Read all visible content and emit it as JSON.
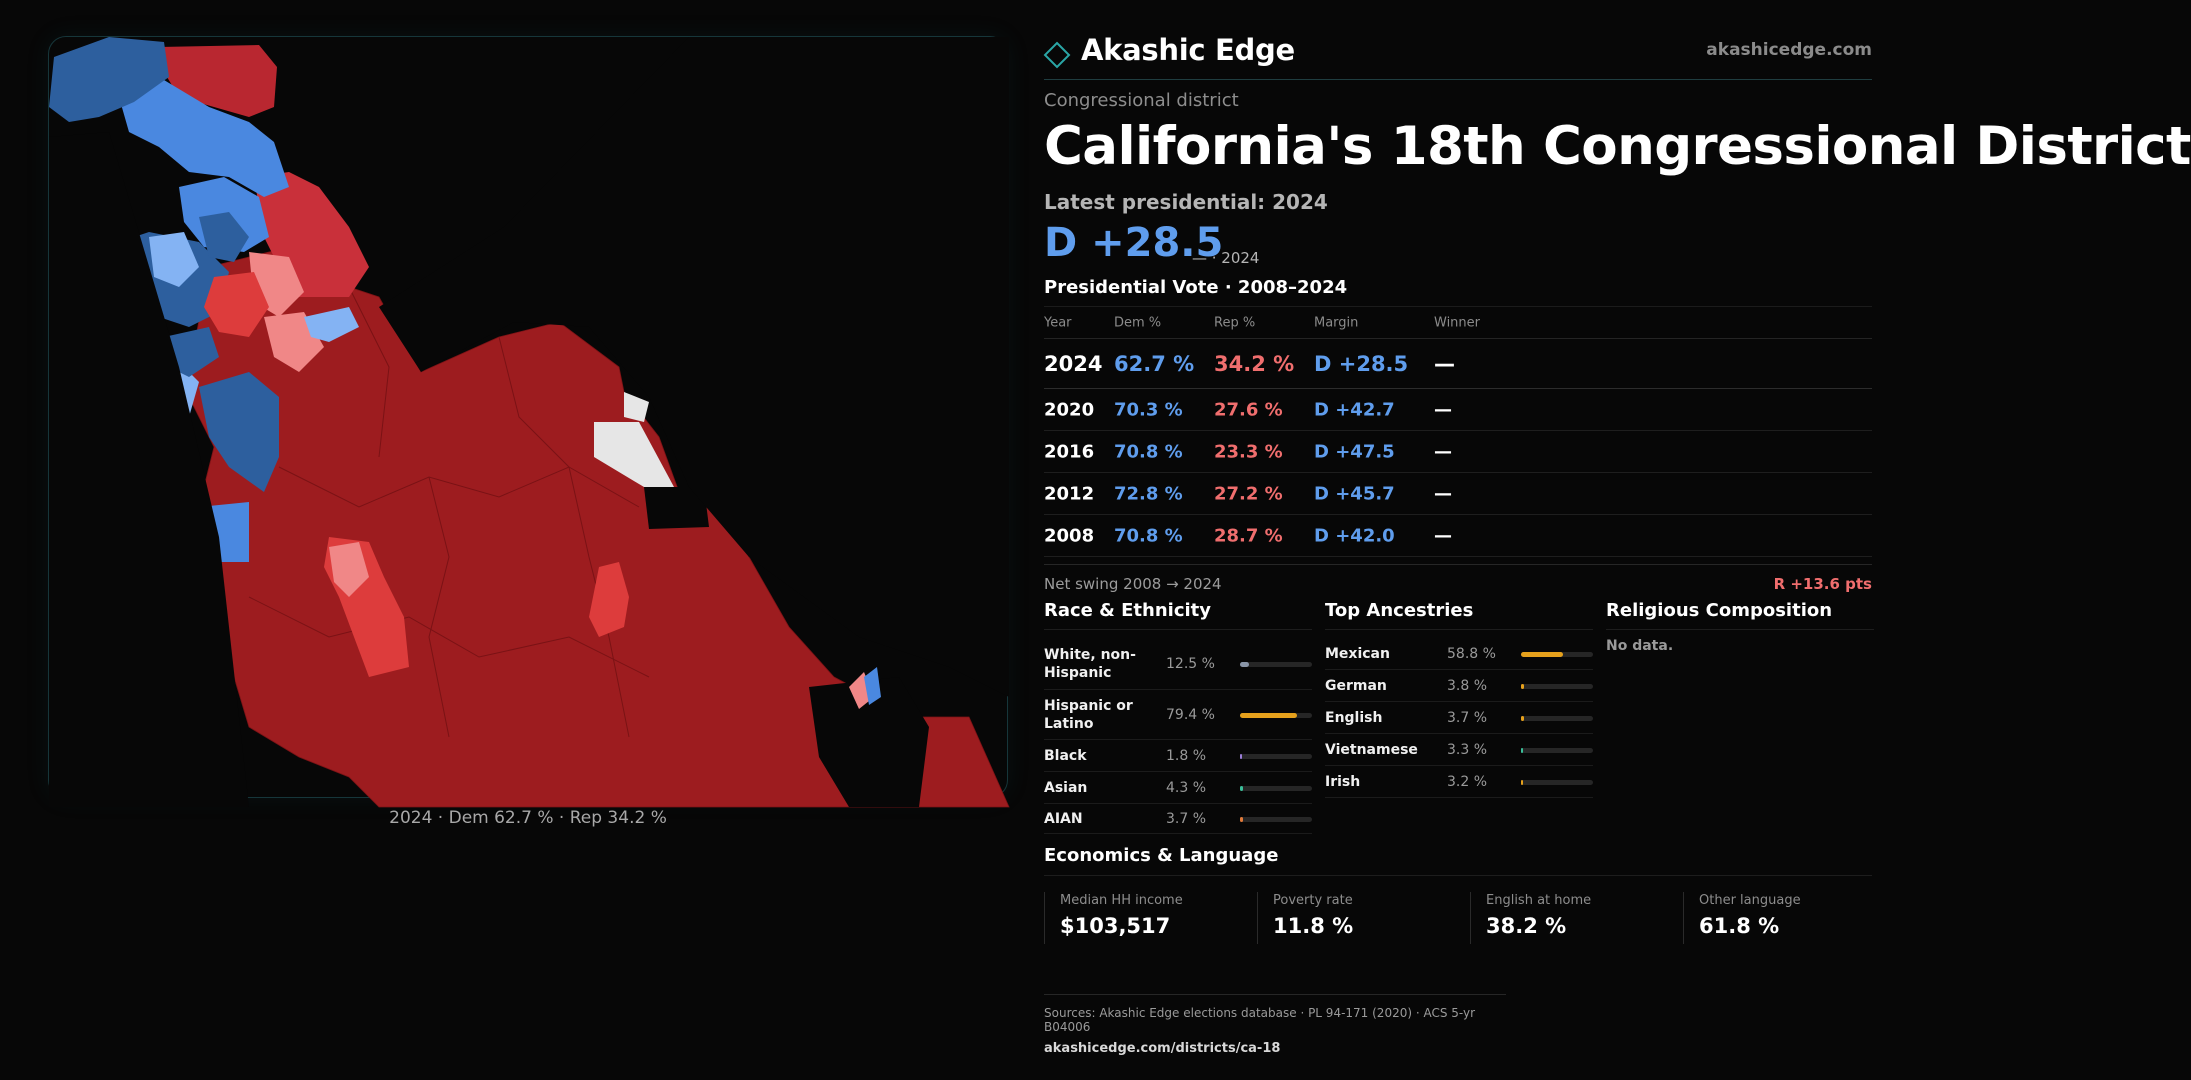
{
  "header": {
    "brand": "Akashic Edge",
    "site": "akashicedge.com"
  },
  "district": {
    "kicker": "Congressional district",
    "title": "California's 18th Congressional District",
    "latest_label": "Latest presidential: 2024",
    "margin": "D +28.5",
    "margin_note": "— · 2024"
  },
  "map": {
    "caption": "2024 · Dem 62.7 % · Rep 34.2 %",
    "colors": {
      "strong_dem": "#2d5f9e",
      "dem": "#4a88e0",
      "lean_dem": "#84b3f3",
      "lean_rep": "#f08787",
      "rep": "#dd3c3c",
      "strong_rep": "#9d1c1f",
      "no_data": "#e6e6e6"
    }
  },
  "presidential": {
    "title": "Presidential Vote · 2008–2024",
    "headers": {
      "year": "Year",
      "dem": "Dem %",
      "rep": "Rep %",
      "margin": "Margin",
      "winner": "Winner"
    },
    "rows": [
      {
        "year": "2024",
        "dem": "62.7 %",
        "rep": "34.2 %",
        "margin": "D +28.5",
        "winner": "—"
      },
      {
        "year": "2020",
        "dem": "70.3 %",
        "rep": "27.6 %",
        "margin": "D +42.7",
        "winner": "—"
      },
      {
        "year": "2016",
        "dem": "70.8 %",
        "rep": "23.3 %",
        "margin": "D +47.5",
        "winner": "—"
      },
      {
        "year": "2012",
        "dem": "72.8 %",
        "rep": "27.2 %",
        "margin": "D +45.7",
        "winner": "—"
      },
      {
        "year": "2008",
        "dem": "70.8 %",
        "rep": "28.7 %",
        "margin": "D +42.0",
        "winner": "—"
      }
    ]
  },
  "swing": {
    "label": "Net swing 2008 → 2024",
    "value": "R +13.6 pts"
  },
  "race": {
    "title": "Race & Ethnicity",
    "items": [
      {
        "name": "White, non-Hispanic",
        "pct": "12.5 %",
        "share": 0.125,
        "color": "#8a96a8"
      },
      {
        "name": "Hispanic or Latino",
        "pct": "79.4 %",
        "share": 0.794,
        "color": "#e6a11c"
      },
      {
        "name": "Black",
        "pct": "1.8 %",
        "share": 0.018,
        "color": "#9b7ed8"
      },
      {
        "name": "Asian",
        "pct": "4.3 %",
        "share": 0.043,
        "color": "#3bbf9a"
      },
      {
        "name": "AIAN",
        "pct": "3.7 %",
        "share": 0.037,
        "color": "#e07a3a"
      }
    ]
  },
  "ancestry": {
    "title": "Top Ancestries",
    "items": [
      {
        "name": "Mexican",
        "pct": "58.8 %",
        "share": 0.588,
        "color": "#e6a11c"
      },
      {
        "name": "German",
        "pct": "3.8 %",
        "share": 0.038,
        "color": "#e6a11c"
      },
      {
        "name": "English",
        "pct": "3.7 %",
        "share": 0.037,
        "color": "#e6a11c"
      },
      {
        "name": "Vietnamese",
        "pct": "3.3 %",
        "share": 0.033,
        "color": "#3bbf9a"
      },
      {
        "name": "Irish",
        "pct": "3.2 %",
        "share": 0.032,
        "color": "#e6a11c"
      }
    ]
  },
  "religion": {
    "title": "Religious Composition",
    "note": "No data."
  },
  "economics": {
    "title": "Economics & Language",
    "cells": [
      {
        "label": "Median HH income",
        "value": "$103,517"
      },
      {
        "label": "Poverty rate",
        "value": "11.8 %"
      },
      {
        "label": "English at home",
        "value": "38.2 %"
      },
      {
        "label": "Other language",
        "value": "61.8 %"
      }
    ]
  },
  "footer": {
    "sources": "Sources: Akashic Edge elections database · PL 94-171 (2020) · ACS 5-yr B04006",
    "url": "akashicedge.com/districts/ca-18"
  }
}
